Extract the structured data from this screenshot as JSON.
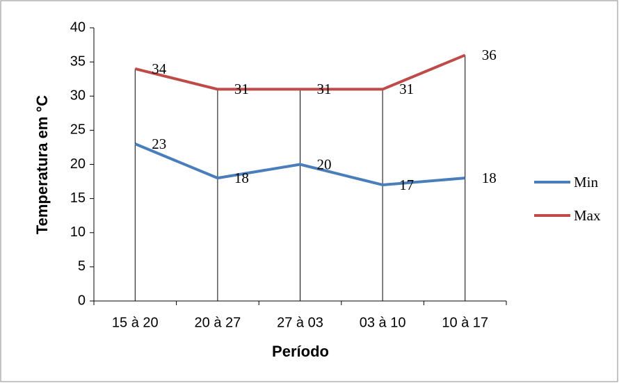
{
  "chart_data": {
    "type": "line",
    "x_label": "Período",
    "y_label": "Temperatura em °C",
    "categories": [
      "15 à 20",
      "20 à 27",
      "27 à 03",
      "03 à 10",
      "10 à 17"
    ],
    "series": [
      {
        "name": "Min",
        "color": "#4a7ebb",
        "values": [
          23,
          18,
          20,
          17,
          18
        ]
      },
      {
        "name": "Max",
        "color": "#be4b48",
        "values": [
          34,
          31,
          31,
          31,
          36
        ]
      }
    ],
    "ylim": [
      0,
      40
    ],
    "yticks": [
      0,
      5,
      10,
      15,
      20,
      25,
      30,
      35,
      40
    ],
    "drop_lines": true,
    "data_labels": true,
    "legend": "right"
  }
}
